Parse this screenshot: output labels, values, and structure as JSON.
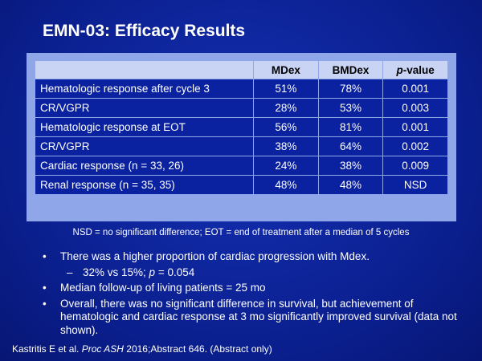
{
  "slide": {
    "title": "EMN-03: Efficacy Results"
  },
  "table": {
    "headers": {
      "col1": "",
      "col2": "MDex",
      "col3": "BMDex",
      "col4_p": "p",
      "col4_rest": "-value"
    },
    "rows": [
      {
        "label": "Hematologic response after cycle 3",
        "mdex": "51%",
        "bmdex": "78%",
        "p": "0.001"
      },
      {
        "label": "CR/VGPR",
        "mdex": "28%",
        "bmdex": "53%",
        "p": "0.003"
      },
      {
        "label": "Hematologic response at EOT",
        "mdex": "56%",
        "bmdex": "81%",
        "p": "0.001"
      },
      {
        "label": "CR/VGPR",
        "mdex": "38%",
        "bmdex": "64%",
        "p": "0.002"
      },
      {
        "label": "Cardiac response (n = 33, 26)",
        "mdex": "24%",
        "bmdex": "38%",
        "p": "0.009"
      },
      {
        "label": "Renal response (n = 35, 35)",
        "mdex": "48%",
        "bmdex": "48%",
        "p": "NSD"
      }
    ]
  },
  "footnote": "NSD = no significant difference; EOT = end of treatment after a median of 5 cycles",
  "bullets": {
    "b1": "There was a higher proportion of cardiac progression with Mdex.",
    "b1_sub_pre": "32% vs 15%; ",
    "b1_sub_p": "p",
    "b1_sub_post": " = 0.054",
    "b2": "Median follow-up of living patients = 25 mo",
    "b3": "Overall, there was no significant difference in survival, but achievement of hematologic and cardiac response at 3 mo significantly improved survival (data not shown)."
  },
  "citation": {
    "authors": "Kastritis E et al. ",
    "journal": "Proc ASH",
    "rest": " 2016;Abstract 646. (Abstract only)"
  }
}
